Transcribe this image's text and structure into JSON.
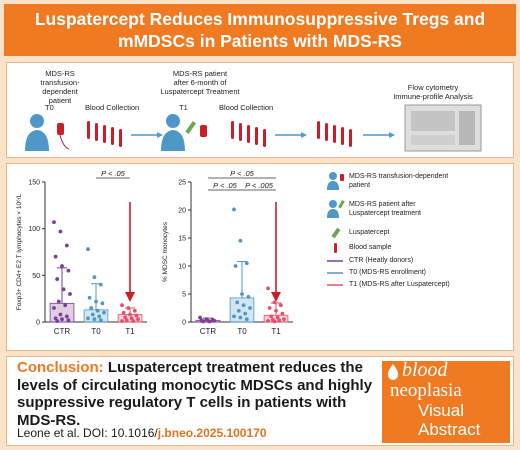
{
  "title": {
    "line1": "Luspatercept Reduces Immunosuppressive Tregs and",
    "line2": "mMDSCs in Patients with MDS-RS"
  },
  "workflow": {
    "label_patient_line1": "MDS-RS",
    "label_patient_line2": "transfusion-dependent",
    "label_patient_line3": "patient",
    "label_after_line1": "MDS-RS patient",
    "label_after_line2": "after 6-month of",
    "label_after_line3": "Luspatercept Treatment",
    "t0": "T0",
    "t1": "T1",
    "blood_collection_1": "Blood Collection",
    "blood_collection_2": "Blood Collection",
    "flow_line1": "Flow cytometry",
    "flow_line2": "Immune-profile Analysis"
  },
  "chart_data": [
    {
      "type": "scatter",
      "ylabel": "Foxp3+ CD4+ E2 T lymphocytes × 10⁶/L",
      "categories": [
        "CTR",
        "T0",
        "T1"
      ],
      "ylim": [
        0,
        150
      ],
      "yticks": [
        0,
        50,
        100,
        150
      ],
      "bars": [
        20,
        13,
        8
      ],
      "errors": [
        38,
        28,
        7
      ],
      "significance": [
        "P < .05"
      ],
      "points": [
        [
          107,
          97,
          82,
          70,
          60,
          55,
          46,
          35,
          30,
          22,
          18,
          15,
          8,
          6,
          4,
          3,
          2,
          1
        ],
        [
          78,
          48,
          40,
          26,
          22,
          20,
          15,
          12,
          10,
          8,
          6,
          4,
          3,
          2
        ],
        [
          18,
          15,
          12,
          10,
          8,
          7,
          5,
          4,
          3,
          2,
          1,
          1
        ]
      ]
    },
    {
      "type": "scatter",
      "ylabel": "% MDSC monocytes",
      "categories": [
        "CTR",
        "T0",
        "T1"
      ],
      "ylim": [
        0,
        25
      ],
      "yticks": [
        0,
        5,
        10,
        15,
        20,
        25
      ],
      "bars": [
        0.3,
        4.3,
        1.2
      ],
      "errors": [
        0.4,
        6.5,
        2.2
      ],
      "significance": [
        "P < .05",
        "P < .05",
        "P < .005"
      ],
      "points": [
        [
          0.8,
          0.5,
          0.4,
          0.3,
          0.2,
          0.2,
          0.1,
          0.1
        ],
        [
          20.1,
          14.5,
          10.5,
          10,
          5,
          4.5,
          3.5,
          3,
          2.5,
          2,
          1.5,
          1,
          0.8,
          0.5
        ],
        [
          6,
          3.5,
          3,
          2.5,
          2,
          1.5,
          1,
          0.8,
          0.5,
          0.4,
          0.3,
          0.2,
          0.1
        ]
      ]
    }
  ],
  "legend": {
    "item1_line1": "MDS-RS transfusion-dependent",
    "item1_line2": "patient",
    "item2_line1": "MDS-RS patient after",
    "item2_line2": "Luspatercept treatment",
    "item3": "Luspatercept",
    "item4": "Blood sample",
    "item5": "CTR (Heatly donors)",
    "item6": "T0 (MDS-RS enrollment)",
    "item7": "T1 (MDS-RS after Luspatercept)"
  },
  "conclusion": {
    "label": "Conclusion:",
    "text": "Luspatercept treatment reduces the levels of circulating monocytic MDSCs and highly suppressive regulatory T cells in patients with MDS-RS."
  },
  "citation": {
    "authors": "Leone et al. DOI: 10.1016/",
    "doi_tail": "j.bneo.2025.100170"
  },
  "logo": {
    "blood": "blood",
    "neoplasia": "neoplasia",
    "visual": "Visual",
    "abstract": "Abstract"
  },
  "colors": {
    "orange": "#ef7a22",
    "blue": "#4f97c7",
    "purple": "#7b3f96",
    "red": "#c8202a",
    "pink": "#e8506a"
  }
}
